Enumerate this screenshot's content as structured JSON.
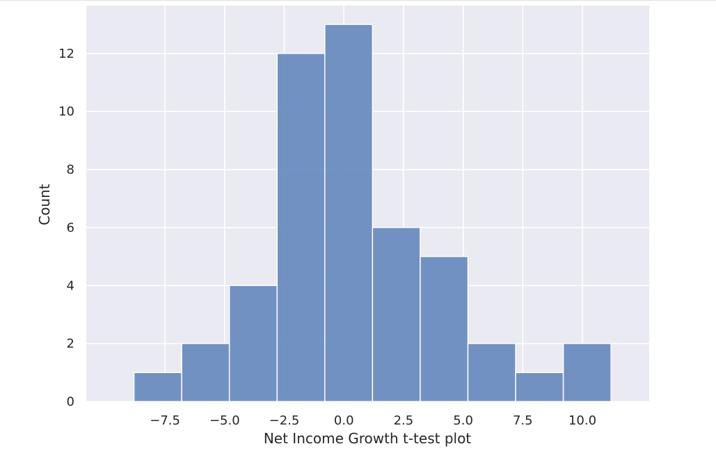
{
  "chart_data": {
    "type": "bar",
    "title": "",
    "xlabel": "Net Income Growth t-test plot",
    "ylabel": "Count",
    "bins": [
      {
        "x0": -8.8,
        "x1": -6.8,
        "count": 1
      },
      {
        "x0": -6.8,
        "x1": -4.8,
        "count": 2
      },
      {
        "x0": -4.8,
        "x1": -2.8,
        "count": 4
      },
      {
        "x0": -2.8,
        "x1": -0.8,
        "count": 12
      },
      {
        "x0": -0.8,
        "x1": 1.2,
        "count": 13
      },
      {
        "x0": 1.2,
        "x1": 3.2,
        "count": 6
      },
      {
        "x0": 3.2,
        "x1": 5.2,
        "count": 5
      },
      {
        "x0": 5.2,
        "x1": 7.2,
        "count": 2
      },
      {
        "x0": 7.2,
        "x1": 9.2,
        "count": 1
      },
      {
        "x0": 9.2,
        "x1": 11.2,
        "count": 2
      }
    ],
    "xlim": [
      -10.8,
      12.8
    ],
    "ylim": [
      0,
      13.65
    ],
    "xticks": [
      {
        "value": -7.5,
        "label": "−7.5"
      },
      {
        "value": -5.0,
        "label": "−5.0"
      },
      {
        "value": -2.5,
        "label": "−2.5"
      },
      {
        "value": 0.0,
        "label": "0.0"
      },
      {
        "value": 2.5,
        "label": "2.5"
      },
      {
        "value": 5.0,
        "label": "5.0"
      },
      {
        "value": 7.5,
        "label": "7.5"
      },
      {
        "value": 10.0,
        "label": "10.0"
      }
    ],
    "yticks": [
      {
        "value": 0,
        "label": "0"
      },
      {
        "value": 2,
        "label": "2"
      },
      {
        "value": 4,
        "label": "4"
      },
      {
        "value": 6,
        "label": "6"
      },
      {
        "value": 8,
        "label": "8"
      },
      {
        "value": 10,
        "label": "10"
      },
      {
        "value": 12,
        "label": "12"
      }
    ],
    "grid": true,
    "colors": {
      "bar": "#6b8cc0",
      "background": "#eaeaf2",
      "grid": "#ffffff"
    }
  }
}
